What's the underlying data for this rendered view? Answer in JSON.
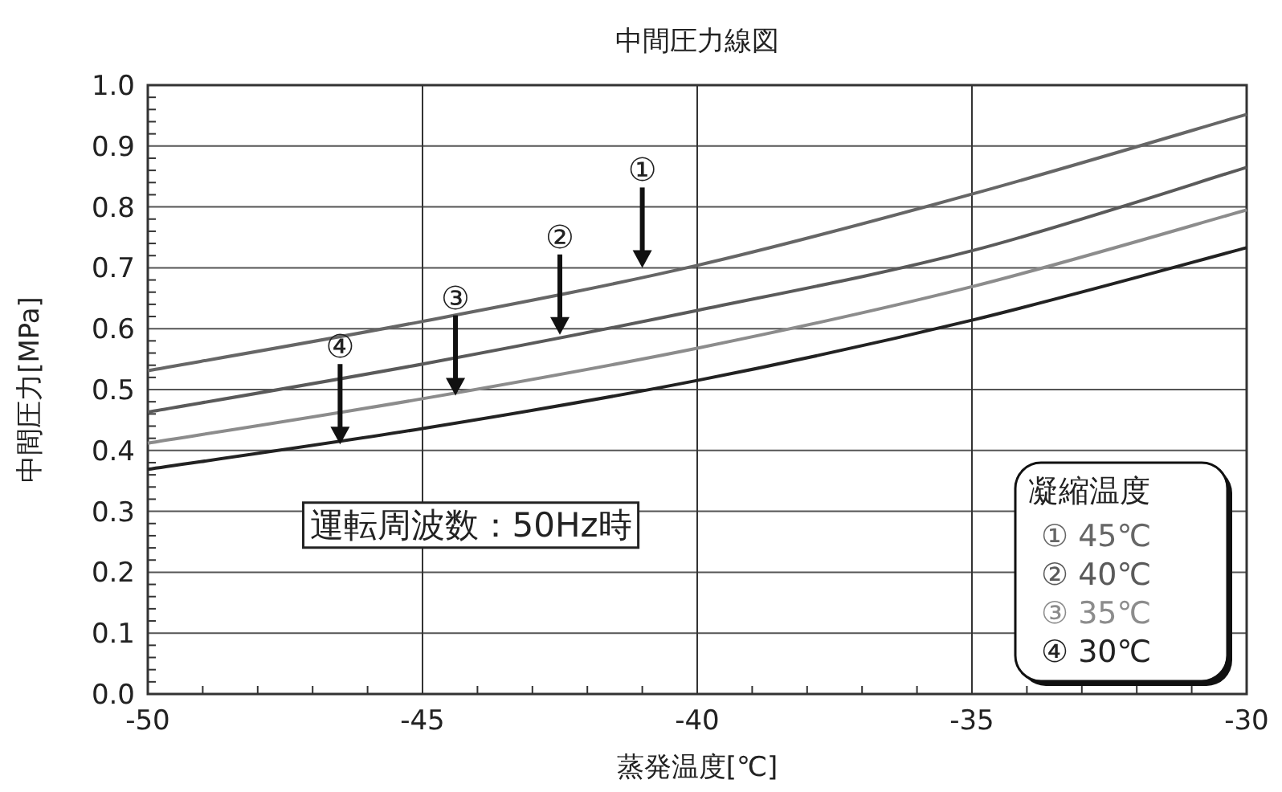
{
  "chart_data": {
    "type": "line",
    "title": "中間圧力線図",
    "xlabel": "蒸発温度[℃]",
    "ylabel": "中間圧力[MPa]",
    "legend_title": "凝縮温度",
    "x": [
      -50,
      -45,
      -40,
      -35,
      -30
    ],
    "series": [
      {
        "name": "① 45℃",
        "color": "#666666",
        "values": [
          0.531,
          0.612,
          0.704,
          0.821,
          0.952
        ]
      },
      {
        "name": "② 40℃",
        "color": "#5a5a5a",
        "values": [
          0.463,
          0.542,
          0.63,
          0.728,
          0.865
        ]
      },
      {
        "name": "③ 35℃",
        "color": "#8c8c8c",
        "values": [
          0.412,
          0.485,
          0.568,
          0.669,
          0.795
        ]
      },
      {
        "name": "④ 30℃",
        "color": "#222222",
        "values": [
          0.369,
          0.436,
          0.515,
          0.614,
          0.733
        ]
      }
    ],
    "annotations": [
      {
        "text": "①",
        "x": -41,
        "y": 0.7
      },
      {
        "text": "②",
        "x": -42.5,
        "y": 0.59
      },
      {
        "text": "③",
        "x": -44.4,
        "y": 0.49
      },
      {
        "text": "④",
        "x": -46.5,
        "y": 0.41
      },
      "運転周波数：50Hz時"
    ],
    "xlim": [
      -50,
      -30
    ],
    "ylim": [
      0,
      1
    ],
    "xticks": [
      -50,
      -45,
      -40,
      -35,
      -30
    ],
    "yticks": [
      {
        "value": 0,
        "label": "0.0"
      },
      0.1,
      0.2,
      0.3,
      0.4,
      0.5,
      0.6,
      0.7,
      0.8,
      0.9,
      {
        "value": 1,
        "label": "1.0"
      }
    ],
    "grid": true,
    "legend": "bottom right",
    "marker": "none",
    "line_style": "solid"
  }
}
